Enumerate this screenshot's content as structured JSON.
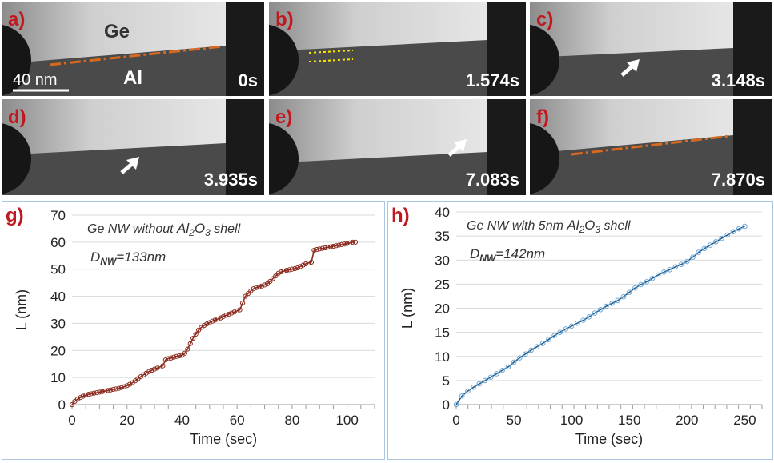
{
  "colors": {
    "panel_label": "#c0181f",
    "interface_line": "#d8691e",
    "dotted_marker": "#ffe600",
    "arrow": "#ffffff",
    "series_g": "#8b2b1f",
    "series_h": "#1f5b8a",
    "marker_h": "#6fa8d6",
    "grid": "#d9d9d9",
    "panel_border": "#a9c6e2"
  },
  "tem_panels": [
    {
      "label": "a)",
      "time": "0s",
      "ge_label": "Ge",
      "al_label": "Al",
      "scale_bar": "40 nm",
      "marker": "orange-dashdot-line"
    },
    {
      "label": "b)",
      "time": "1.574s",
      "marker": "yellow-dotted-lines"
    },
    {
      "label": "c)",
      "time": "3.148s",
      "marker": "arrow"
    },
    {
      "label": "d)",
      "time": "3.935s",
      "marker": "arrow"
    },
    {
      "label": "e)",
      "time": "7.083s",
      "marker": "arrow"
    },
    {
      "label": "f)",
      "time": "7.870s",
      "marker": "orange-dashdot-line"
    }
  ],
  "chart_data": [
    {
      "panel_label": "g)",
      "type": "line",
      "annotation": "Ge NW without Al₂O₃ shell",
      "annotation_parts": {
        "pre": "Ge NW without ",
        "al": "Al",
        "al_sub": "2",
        "o": "O",
        "o_sub": "3",
        "post": " shell"
      },
      "diameter_parts": {
        "d": "D",
        "sub": "NW",
        "value": "=133nm"
      },
      "xlabel": "Time (sec)",
      "ylabel": "L (nm)",
      "xlim": [
        0,
        110
      ],
      "ylim": [
        0,
        70
      ],
      "xticks": [
        0,
        20,
        40,
        60,
        80,
        100
      ],
      "yticks": [
        0,
        10,
        20,
        30,
        40,
        50,
        60,
        70
      ],
      "grid": true,
      "x": [
        0,
        1,
        2,
        3,
        4,
        5,
        6,
        7,
        8,
        9,
        10,
        11,
        12,
        13,
        14,
        15,
        16,
        17,
        18,
        19,
        20,
        21,
        22,
        23,
        24,
        25,
        26,
        27,
        28,
        29,
        30,
        31,
        32,
        33,
        34,
        35,
        36,
        37,
        38,
        39,
        40,
        41,
        42,
        43,
        44,
        45,
        46,
        47,
        48,
        49,
        50,
        51,
        52,
        53,
        54,
        55,
        56,
        57,
        58,
        59,
        60,
        61,
        62,
        63,
        64,
        65,
        66,
        67,
        68,
        69,
        70,
        71,
        72,
        73,
        74,
        75,
        76,
        77,
        78,
        79,
        80,
        81,
        82,
        83,
        84,
        85,
        86,
        87,
        88,
        89,
        90,
        91,
        92,
        93,
        94,
        95,
        96,
        97,
        98,
        99,
        100,
        101,
        102,
        103
      ],
      "y": [
        0,
        1.2,
        2.0,
        2.6,
        3.1,
        3.5,
        3.8,
        4.0,
        4.2,
        4.4,
        4.6,
        4.8,
        5.0,
        5.2,
        5.4,
        5.6,
        5.8,
        6.0,
        6.3,
        6.6,
        7.0,
        7.5,
        8.1,
        8.8,
        9.6,
        10.3,
        11.0,
        11.6,
        12.2,
        12.7,
        13.1,
        13.5,
        13.9,
        14.3,
        16.5,
        17.0,
        17.2,
        17.5,
        17.8,
        18.0,
        18.2,
        19.0,
        20.5,
        22.5,
        24.5,
        26.0,
        27.5,
        28.5,
        29.2,
        29.8,
        30.3,
        30.8,
        31.2,
        31.6,
        32.0,
        32.5,
        33.0,
        33.4,
        33.8,
        34.2,
        34.6,
        35.0,
        37.5,
        40.0,
        41.0,
        42.0,
        42.8,
        43.2,
        43.5,
        43.8,
        44.2,
        44.6,
        45.5,
        46.5,
        47.5,
        48.5,
        49.0,
        49.3,
        49.6,
        49.8,
        50.0,
        50.2,
        50.5,
        51.0,
        51.5,
        52.0,
        52.3,
        52.6,
        57.0,
        57.3,
        57.5,
        57.7,
        57.9,
        58.1,
        58.3,
        58.5,
        58.7,
        58.9,
        59.1,
        59.3,
        59.5,
        59.7,
        60.0,
        60.0
      ]
    },
    {
      "panel_label": "h)",
      "type": "line",
      "annotation": "Ge NW with 5nm Al₂O₃ shell",
      "annotation_parts": {
        "pre": "Ge NW with 5nm ",
        "al": "Al",
        "al_sub": "2",
        "o": "O",
        "o_sub": "3",
        "post": " shell"
      },
      "diameter_parts": {
        "d": "D",
        "sub": "NW",
        "value": "=142nm"
      },
      "xlabel": "Time (sec)",
      "ylabel": "L (nm)",
      "xlim": [
        0,
        265
      ],
      "ylim": [
        0,
        40
      ],
      "xticks": [
        0,
        50,
        100,
        150,
        200,
        250
      ],
      "yticks": [
        0,
        5,
        10,
        15,
        20,
        25,
        30,
        35,
        40
      ],
      "grid": true,
      "x": [
        0,
        5,
        10,
        15,
        20,
        25,
        30,
        35,
        40,
        45,
        50,
        55,
        60,
        65,
        70,
        75,
        80,
        85,
        90,
        95,
        100,
        105,
        110,
        115,
        120,
        125,
        130,
        135,
        140,
        145,
        150,
        155,
        160,
        165,
        170,
        175,
        180,
        185,
        190,
        195,
        200,
        205,
        210,
        215,
        220,
        225,
        230,
        235,
        240,
        245,
        250
      ],
      "y": [
        0,
        1.8,
        2.8,
        3.6,
        4.3,
        5.0,
        5.7,
        6.4,
        7.1,
        7.8,
        8.8,
        9.7,
        10.5,
        11.3,
        12.0,
        12.7,
        13.5,
        14.3,
        15.0,
        15.7,
        16.3,
        16.9,
        17.5,
        18.2,
        19.0,
        19.7,
        20.4,
        21.0,
        21.6,
        22.4,
        23.3,
        24.2,
        24.9,
        25.5,
        26.2,
        26.9,
        27.5,
        28.0,
        28.6,
        29.1,
        29.7,
        30.6,
        31.6,
        32.4,
        33.1,
        33.8,
        34.5,
        35.2,
        35.9,
        36.5,
        37.0
      ]
    }
  ]
}
